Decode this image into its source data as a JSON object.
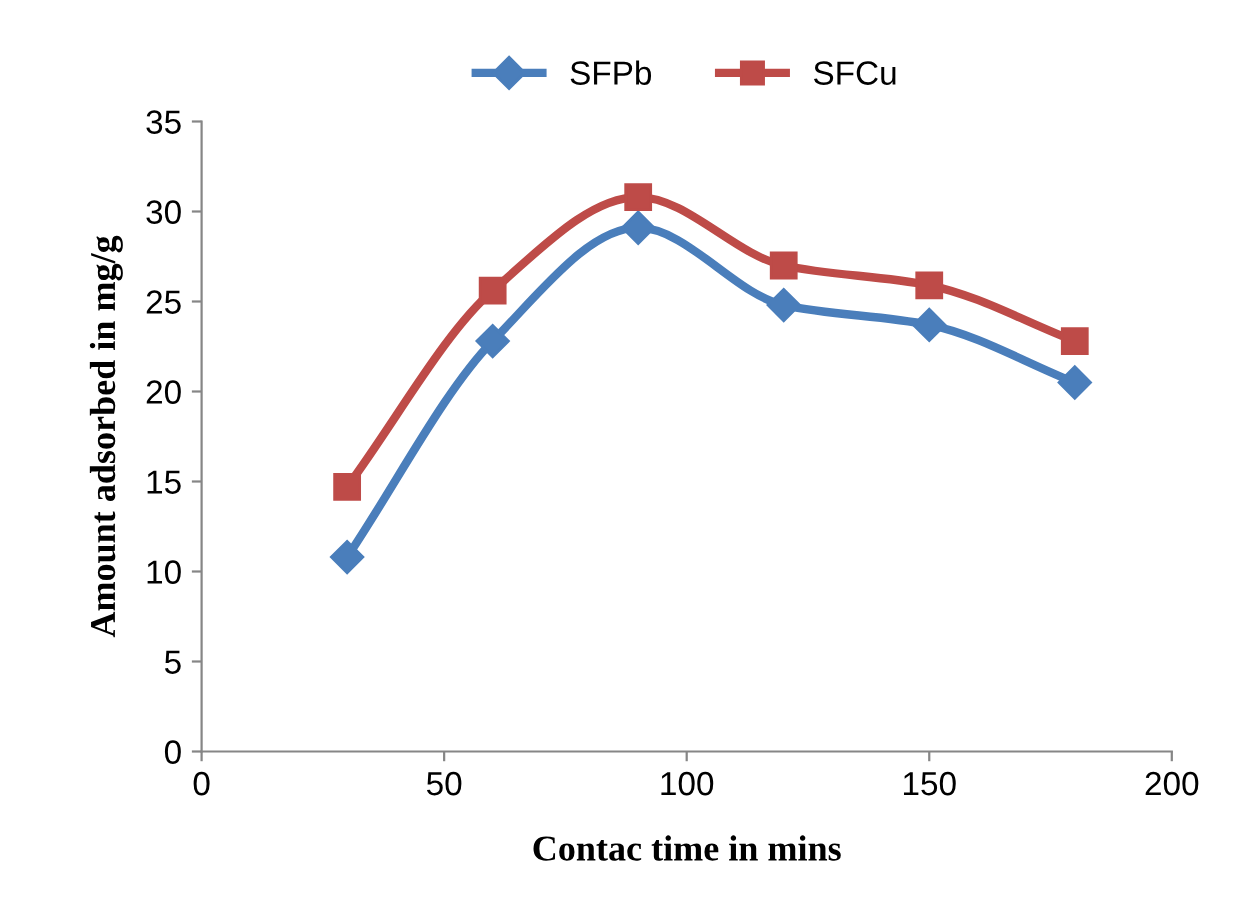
{
  "chart_data": {
    "type": "line",
    "xlabel": "Contac time in mins",
    "ylabel": "Amount adsorbed in mg/g",
    "x": [
      30,
      60,
      90,
      120,
      150,
      180
    ],
    "series": [
      {
        "name": "SFPb",
        "color": "#4a7ebb",
        "marker": "diamond",
        "values": [
          10.8,
          22.8,
          29.1,
          24.8,
          23.7,
          20.5
        ]
      },
      {
        "name": "SFCu",
        "color": "#be4b48",
        "marker": "square",
        "values": [
          14.7,
          25.6,
          30.8,
          27.0,
          25.9,
          22.8
        ]
      }
    ],
    "xlim": [
      0,
      200
    ],
    "xticks": [
      0,
      50,
      100,
      150,
      200
    ],
    "ylim": [
      0,
      35
    ],
    "yticks": [
      0,
      5,
      10,
      15,
      20,
      25,
      30,
      35
    ],
    "grid": false,
    "legend": "top",
    "line_style": "solid"
  }
}
